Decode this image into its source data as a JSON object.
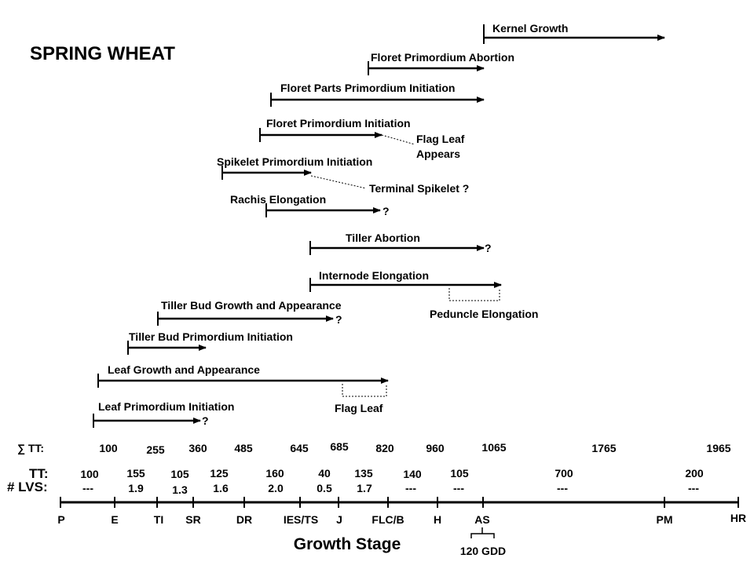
{
  "title": "SPRING WHEAT",
  "axis_title": "Growth Stage",
  "row_labels": {
    "sum_tt": "∑ TT:",
    "tt": "TT:",
    "lvs": "# LVS:"
  },
  "stages": [
    "P",
    "E",
    "TI",
    "SR",
    "DR",
    "IES/TS",
    "J",
    "FLC/B",
    "H",
    "AS",
    "PM",
    "HR"
  ],
  "sum_tt": [
    "100",
    "255",
    "360",
    "485",
    "645",
    "685",
    "820",
    "960",
    "1065",
    "1765",
    "1965"
  ],
  "tt": [
    "100",
    "155",
    "105",
    "125",
    "160",
    "40",
    "135",
    "140",
    "105",
    "700",
    "200"
  ],
  "lvs": [
    "---",
    "1.9",
    "1.3",
    "1.6",
    "2.0",
    "0.5",
    "1.7",
    "---",
    "---",
    "---",
    "---"
  ],
  "bracket_note": "120 GDD",
  "processes": [
    {
      "label": "Kernel Growth",
      "suffix": ""
    },
    {
      "label": "Floret Primordium Abortion",
      "suffix": ""
    },
    {
      "label": "Floret Parts Primordium Initiation",
      "suffix": ""
    },
    {
      "label": "Floret Primordium Initiation",
      "suffix": ""
    },
    {
      "label": "Spikelet Primordium Initiation",
      "suffix": ""
    },
    {
      "label": "Rachis Elongation",
      "suffix": "?"
    },
    {
      "label": "Tiller Abortion",
      "suffix": "?"
    },
    {
      "label": "Internode Elongation",
      "suffix": ""
    },
    {
      "label": "Tiller Bud Growth and Appearance",
      "suffix": "?"
    },
    {
      "label": "Tiller Bud Primordium Initiation",
      "suffix": ""
    },
    {
      "label": "Leaf Growth and Appearance",
      "suffix": ""
    },
    {
      "label": "Leaf Primordium Initiation",
      "suffix": "?"
    }
  ],
  "annotations": {
    "flag_leaf_appears_1": "Flag Leaf",
    "flag_leaf_appears_2": "Appears",
    "terminal_spikelet": "Terminal Spikelet ?",
    "peduncle_elongation": "Peduncle Elongation",
    "flag_leaf": "Flag Leaf"
  }
}
